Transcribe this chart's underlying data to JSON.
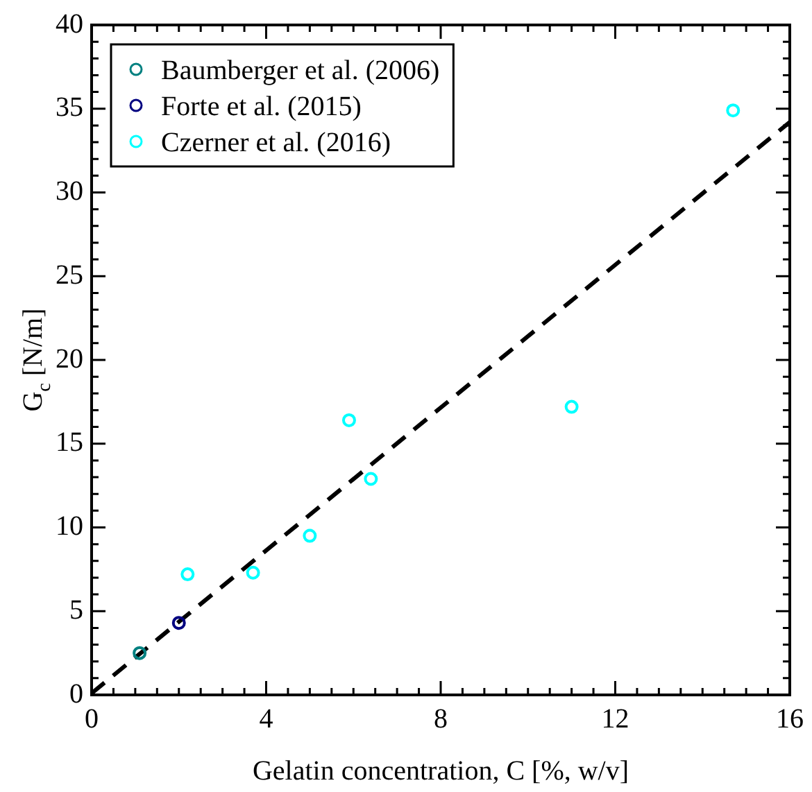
{
  "chart_data": {
    "type": "scatter",
    "xlabel": "Gelatin concentration, C [%, w/v]",
    "ylabel": "G$_{c}$ [N/m]",
    "xlim": [
      0,
      16
    ],
    "ylim": [
      0,
      40
    ],
    "xticks": [
      0,
      {
        "value": 0.5,
        "label": null
      },
      {
        "value": 1,
        "label": null
      },
      {
        "value": 1.5,
        "label": null
      },
      {
        "value": 2,
        "label": null
      },
      {
        "value": 2.5,
        "label": null
      },
      {
        "value": 3,
        "label": null
      },
      {
        "value": 3.5,
        "label": null
      },
      4,
      {
        "value": 4.5,
        "label": null
      },
      {
        "value": 5,
        "label": null
      },
      {
        "value": 5.5,
        "label": null
      },
      {
        "value": 6,
        "label": null
      },
      {
        "value": 6.5,
        "label": null
      },
      {
        "value": 7,
        "label": null
      },
      {
        "value": 7.5,
        "label": null
      },
      8,
      {
        "value": 8.5,
        "label": null
      },
      {
        "value": 9,
        "label": null
      },
      {
        "value": 9.5,
        "label": null
      },
      {
        "value": 10,
        "label": null
      },
      {
        "value": 10.5,
        "label": null
      },
      {
        "value": 11,
        "label": null
      },
      {
        "value": 11.5,
        "label": null
      },
      12,
      {
        "value": 12.5,
        "label": null
      },
      {
        "value": 13,
        "label": null
      },
      {
        "value": 13.5,
        "label": null
      },
      {
        "value": 14,
        "label": null
      },
      {
        "value": 14.5,
        "label": null
      },
      {
        "value": 15,
        "label": null
      },
      {
        "value": 15.5,
        "label": null
      },
      16
    ],
    "yticks": [
      0,
      {
        "value": 1,
        "label": null
      },
      {
        "value": 2,
        "label": null
      },
      {
        "value": 3,
        "label": null
      },
      {
        "value": 4,
        "label": null
      },
      5,
      {
        "value": 6,
        "label": null
      },
      {
        "value": 7,
        "label": null
      },
      {
        "value": 8,
        "label": null
      },
      {
        "value": 9,
        "label": null
      },
      10,
      {
        "value": 11,
        "label": null
      },
      {
        "value": 12,
        "label": null
      },
      {
        "value": 13,
        "label": null
      },
      {
        "value": 14,
        "label": null
      },
      15,
      {
        "value": 16,
        "label": null
      },
      {
        "value": 17,
        "label": null
      },
      {
        "value": 18,
        "label": null
      },
      {
        "value": 19,
        "label": null
      },
      20,
      {
        "value": 21,
        "label": null
      },
      {
        "value": 22,
        "label": null
      },
      {
        "value": 23,
        "label": null
      },
      {
        "value": 24,
        "label": null
      },
      25,
      {
        "value": 26,
        "label": null
      },
      {
        "value": 27,
        "label": null
      },
      {
        "value": 28,
        "label": null
      },
      {
        "value": 29,
        "label": null
      },
      30,
      {
        "value": 31,
        "label": null
      },
      {
        "value": 32,
        "label": null
      },
      {
        "value": 33,
        "label": null
      },
      {
        "value": 34,
        "label": null
      },
      35,
      {
        "value": 36,
        "label": null
      },
      {
        "value": 37,
        "label": null
      },
      {
        "value": 38,
        "label": null
      },
      {
        "value": 39,
        "label": null
      },
      40
    ],
    "grid": false,
    "legend": "top left",
    "marker": "circle",
    "series": [
      {
        "name": "Baumberger et al. (2006)",
        "color": "#008080",
        "x": [
          1.1
        ],
        "values": [
          2.5
        ]
      },
      {
        "name": "Forte et al. (2015)",
        "color": "#000080",
        "x": [
          2.0
        ],
        "values": [
          4.3
        ]
      },
      {
        "name": "Czerner et al. (2016)",
        "color": "#00ffff",
        "x": [
          2.2,
          3.7,
          5.0,
          5.9,
          6.4,
          11.0,
          14.7
        ],
        "values": [
          7.2,
          7.3,
          9.5,
          16.4,
          12.9,
          17.2,
          34.9
        ]
      },
      {
        "type": "line",
        "color": "#000000",
        "line_style": "dashed",
        "marker": "none",
        "x": [
          0,
          16
        ],
        "values": [
          0.1,
          34.2
        ]
      }
    ]
  }
}
